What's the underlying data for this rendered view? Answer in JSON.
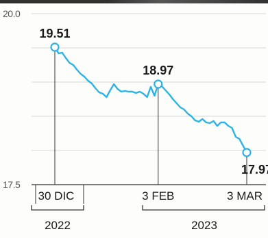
{
  "chart_data": {
    "type": "line",
    "ylim": [
      17.5,
      20.0
    ],
    "yticks": [
      "20.0",
      "17.5"
    ],
    "grid": true,
    "line_color": "#2bb3e6",
    "x_ticks": [
      "30 DIC",
      "3 FEB",
      "3 MAR"
    ],
    "year_labels": [
      "2022",
      "2023"
    ],
    "series": [
      {
        "values": [
          19.51,
          19.42,
          19.43,
          19.35,
          19.28,
          19.25,
          19.18,
          19.12,
          19.08,
          19.02,
          18.98,
          18.91,
          18.85,
          18.83,
          18.78,
          18.88,
          18.97,
          18.9,
          18.86,
          18.87,
          18.86,
          18.86,
          18.84,
          18.86,
          18.83,
          18.78,
          18.93,
          18.8,
          18.97,
          18.94,
          18.88,
          18.82,
          18.75,
          18.69,
          18.63,
          18.6,
          18.54,
          18.5,
          18.44,
          18.42,
          18.46,
          18.41,
          18.4,
          18.43,
          18.36,
          18.41,
          18.41,
          18.36,
          18.33,
          18.2,
          18.17,
          18.07,
          17.97
        ]
      }
    ],
    "annotations": [
      {
        "label": "19.51",
        "index": 0
      },
      {
        "label": "18.97",
        "index": 28
      },
      {
        "label": "17.97",
        "index": 52
      }
    ]
  }
}
